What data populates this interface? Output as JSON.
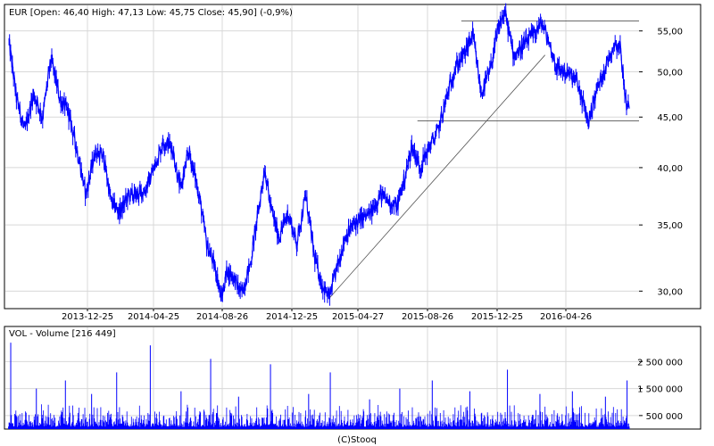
{
  "chart_data": [
    {
      "type": "line",
      "title": "EUR [Open: 46,40  High: 47,13  Low: 45,75  Close: 45,90] (-0,9%)",
      "x_tick_labels": [
        "2013-12-25",
        "2014-04-25",
        "2014-08-26",
        "2014-12-25",
        "2015-04-27",
        "2015-08-26",
        "2015-12-25",
        "2016-04-26"
      ],
      "y_tick_labels": [
        "55,00",
        "50,00",
        "45,00",
        "40,00",
        "35,00",
        "30,00"
      ],
      "y_ticks": [
        55,
        50,
        45,
        40,
        35,
        30
      ],
      "y_scale": "log",
      "ylim": [
        28.8,
        58.5
      ],
      "grid": true,
      "color": "#0000ff",
      "series": [
        {
          "points": [
            [
              "2013-09-02",
              53.5
            ],
            [
              "2013-09-15",
              47.0
            ],
            [
              "2013-09-30",
              43.5
            ],
            [
              "2013-10-15",
              47.5
            ],
            [
              "2013-10-31",
              45.0
            ],
            [
              "2013-11-15",
              51.5
            ],
            [
              "2013-11-30",
              47.0
            ],
            [
              "2013-12-15",
              45.5
            ],
            [
              "2013-12-31",
              41.5
            ],
            [
              "2014-01-15",
              37.5
            ],
            [
              "2014-01-31",
              41.5
            ],
            [
              "2014-02-15",
              41.0
            ],
            [
              "2014-02-28",
              37.0
            ],
            [
              "2014-03-15",
              36.0
            ],
            [
              "2014-03-31",
              37.5
            ],
            [
              "2014-04-15",
              37.5
            ],
            [
              "2014-04-30",
              38.0
            ],
            [
              "2014-05-15",
              40.0
            ],
            [
              "2014-05-31",
              42.5
            ],
            [
              "2014-06-15",
              42.0
            ],
            [
              "2014-06-30",
              38.0
            ],
            [
              "2014-07-15",
              41.5
            ],
            [
              "2014-07-31",
              38.0
            ],
            [
              "2014-08-15",
              33.5
            ],
            [
              "2014-08-31",
              31.5
            ],
            [
              "2014-09-10",
              29.5
            ],
            [
              "2014-09-20",
              31.5
            ],
            [
              "2014-10-01",
              31.0
            ],
            [
              "2014-10-15",
              29.8
            ],
            [
              "2014-10-31",
              32.0
            ],
            [
              "2014-11-15",
              36.5
            ],
            [
              "2014-11-25",
              40.0
            ],
            [
              "2014-12-05",
              36.5
            ],
            [
              "2014-12-20",
              34.0
            ],
            [
              "2015-01-05",
              36.0
            ],
            [
              "2015-01-20",
              33.5
            ],
            [
              "2015-02-05",
              37.5
            ],
            [
              "2015-02-20",
              32.5
            ],
            [
              "2015-03-05",
              30.5
            ],
            [
              "2015-03-18",
              29.5
            ],
            [
              "2015-03-31",
              31.5
            ],
            [
              "2015-04-15",
              34.0
            ],
            [
              "2015-04-30",
              35.0
            ],
            [
              "2015-05-15",
              35.5
            ],
            [
              "2015-05-31",
              36.0
            ],
            [
              "2015-06-15",
              37.5
            ],
            [
              "2015-06-30",
              37.0
            ],
            [
              "2015-07-15",
              36.5
            ],
            [
              "2015-07-31",
              39.5
            ],
            [
              "2015-08-10",
              42.0
            ],
            [
              "2015-08-25",
              40.0
            ],
            [
              "2015-09-10",
              42.0
            ],
            [
              "2015-09-25",
              43.5
            ],
            [
              "2015-10-10",
              47.0
            ],
            [
              "2015-10-25",
              50.5
            ],
            [
              "2015-11-10",
              52.0
            ],
            [
              "2015-11-25",
              54.5
            ],
            [
              "2015-12-10",
              47.5
            ],
            [
              "2015-12-25",
              50.0
            ],
            [
              "2016-01-10",
              55.5
            ],
            [
              "2016-01-20",
              57.5
            ],
            [
              "2016-02-05",
              52.0
            ],
            [
              "2016-02-20",
              53.0
            ],
            [
              "2016-03-10",
              54.5
            ],
            [
              "2016-03-25",
              56.0
            ],
            [
              "2016-04-05",
              54.0
            ],
            [
              "2016-04-20",
              50.5
            ],
            [
              "2016-05-05",
              50.0
            ],
            [
              "2016-05-25",
              49.0
            ],
            [
              "2016-06-15",
              44.5
            ],
            [
              "2016-06-30",
              48.0
            ],
            [
              "2016-07-15",
              50.5
            ],
            [
              "2016-07-31",
              53.5
            ],
            [
              "2016-08-10",
              53.0
            ],
            [
              "2016-08-20",
              46.5
            ],
            [
              "2016-08-26",
              45.9
            ]
          ]
        }
      ],
      "annotations": {
        "trendline": [
          [
            "2015-03-18",
            29.5
          ],
          [
            "2016-03-31",
            52.0
          ]
        ],
        "resistance": {
          "from": "2015-11-05",
          "to": "2016-09-12",
          "y": 56.3
        },
        "support": {
          "from": "2015-08-20",
          "to": "2016-09-12",
          "y": 44.6
        }
      }
    },
    {
      "type": "bar",
      "title": "VOL - Volume [216 449]",
      "y_tick_labels": [
        "2 500 000",
        "1 500 000",
        "500 000"
      ],
      "y_ticks": [
        2500000,
        1500000,
        500000
      ],
      "ylim": [
        0,
        3800000
      ],
      "grid": true,
      "color": "#0000ff",
      "volume_spikes": [
        [
          "2013-09-05",
          3200000
        ],
        [
          "2013-10-20",
          1500000
        ],
        [
          "2013-12-10",
          1800000
        ],
        [
          "2014-01-25",
          1300000
        ],
        [
          "2014-03-10",
          2100000
        ],
        [
          "2014-05-08",
          3100000
        ],
        [
          "2014-07-01",
          1400000
        ],
        [
          "2014-08-22",
          2600000
        ],
        [
          "2014-10-10",
          1200000
        ],
        [
          "2014-12-05",
          2400000
        ],
        [
          "2015-02-10",
          1300000
        ],
        [
          "2015-03-20",
          2100000
        ],
        [
          "2015-05-28",
          1100000
        ],
        [
          "2015-07-20",
          1500000
        ],
        [
          "2015-09-15",
          1800000
        ],
        [
          "2015-11-20",
          1400000
        ],
        [
          "2016-01-25",
          2200000
        ],
        [
          "2016-03-22",
          1300000
        ],
        [
          "2016-05-18",
          1400000
        ],
        [
          "2016-07-15",
          1200000
        ],
        [
          "2016-08-22",
          1800000
        ]
      ],
      "last_value": 216449
    }
  ],
  "footer": {
    "copyright": "(C)Stooq"
  }
}
